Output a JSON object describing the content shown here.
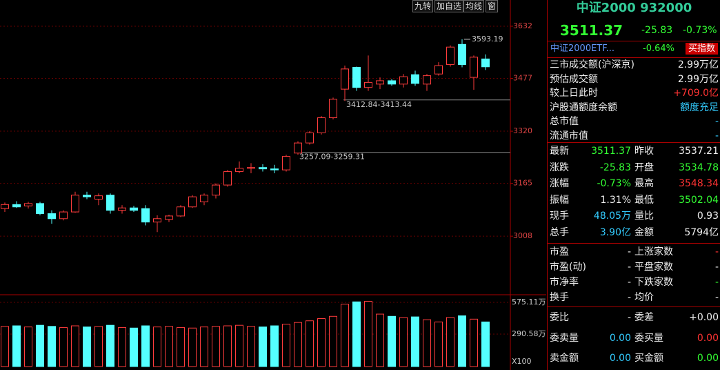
{
  "toolbar": [
    "九转",
    "加自选",
    "均线",
    "窗"
  ],
  "chart_data": {
    "type": "candlestick",
    "open": [
      3090,
      3102,
      3098,
      3105,
      3075,
      3060,
      3080,
      3130,
      3118,
      3130,
      3085,
      3092,
      3090,
      3050,
      3058,
      3068,
      3095,
      3110,
      3130,
      3160,
      3200,
      3210,
      3212,
      3208,
      3205,
      3255,
      3285,
      3315,
      3360,
      3445,
      3510,
      3450,
      3460,
      3470,
      3460,
      3488,
      3460,
      3490,
      3518,
      3578,
      3480,
      3534.78
    ],
    "high": [
      3108,
      3112,
      3110,
      3110,
      3085,
      3085,
      3140,
      3140,
      3135,
      3135,
      3100,
      3098,
      3100,
      3070,
      3072,
      3100,
      3130,
      3135,
      3165,
      3205,
      3230,
      3225,
      3222,
      3220,
      3250,
      3290,
      3320,
      3365,
      3420,
      3515,
      3512,
      3545,
      3480,
      3475,
      3490,
      3500,
      3490,
      3525,
      3575,
      3593.19,
      3545,
      3548.34
    ],
    "low": [
      3080,
      3092,
      3090,
      3070,
      3045,
      3055,
      3078,
      3118,
      3100,
      3075,
      3075,
      3080,
      3040,
      3020,
      3050,
      3065,
      3092,
      3100,
      3120,
      3155,
      3195,
      3195,
      3200,
      3195,
      3200,
      3250,
      3280,
      3310,
      3355,
      3410,
      3440,
      3440,
      3445,
      3455,
      3450,
      3455,
      3440,
      3485,
      3512,
      3510,
      3443,
      3502.04
    ],
    "close": [
      3102,
      3095,
      3105,
      3075,
      3060,
      3080,
      3130,
      3125,
      3128,
      3085,
      3092,
      3085,
      3050,
      3060,
      3068,
      3095,
      3125,
      3130,
      3160,
      3200,
      3210,
      3212,
      3208,
      3205,
      3245,
      3285,
      3315,
      3360,
      3415,
      3505,
      3450,
      3465,
      3470,
      3460,
      3482,
      3462,
      3485,
      3515,
      3570,
      3518,
      3540,
      3511.37
    ],
    "ylim": [
      2838,
      3673
    ],
    "yticks": [
      3008,
      3165,
      3320,
      3477,
      3632
    ],
    "annotations": [
      {
        "value": 3412.84,
        "label": "3412.84-3413.44"
      },
      {
        "value": 3257.09,
        "label": "3257.09-3259.31"
      }
    ]
  },
  "volume": {
    "type": "bar",
    "values": [
      360,
      365,
      355,
      370,
      360,
      350,
      365,
      355,
      360,
      370,
      350,
      345,
      365,
      355,
      360,
      350,
      345,
      355,
      360,
      365,
      370,
      360,
      355,
      365,
      380,
      395,
      410,
      430,
      450,
      560,
      580,
      585,
      470,
      450,
      440,
      445,
      420,
      400,
      440,
      455,
      425,
      400
    ],
    "ylim": [
      0,
      625
    ],
    "yticks": [
      {
        "value": 290.58,
        "label": "290.58万"
      },
      {
        "value": 575.11,
        "label": "575.11万"
      }
    ],
    "unit": "X100"
  },
  "header": {
    "title": "中证2000 932000",
    "price": "3511.37",
    "change": "-25.83",
    "pct": "-0.73%"
  },
  "etf": {
    "name": "中证2000ETF...",
    "pct": "-0.64%",
    "button": "买指数"
  },
  "info": [
    [
      "三市成交额(沪深京)",
      "2.99万亿"
    ],
    [
      "预估成交额",
      "2.99万亿"
    ],
    [
      "较上日此时",
      "+709.0亿"
    ],
    [
      "沪股通额度余额",
      "额度充足"
    ],
    [
      "总市值",
      "-"
    ],
    [
      "流通市值",
      "-"
    ]
  ],
  "quote": [
    [
      "最新",
      "3511.37",
      "昨收",
      "3537.21"
    ],
    [
      "涨跌",
      "-25.83",
      "开盘",
      "3534.78"
    ],
    [
      "涨幅",
      "-0.73%",
      "最高",
      "3548.34"
    ],
    [
      "振幅",
      "1.31%",
      "最低",
      "3502.04"
    ],
    [
      "现手",
      "48.05万",
      "量比",
      "0.93"
    ],
    [
      "总手",
      "3.90亿",
      "金额",
      "5794亿"
    ]
  ],
  "stats": [
    [
      "市盈",
      "-",
      "上涨家数",
      "-"
    ],
    [
      "市盈(动)",
      "-",
      "平盘家数",
      "-"
    ],
    [
      "市净率",
      "-",
      "下跌家数",
      "-"
    ],
    [
      "换手",
      "-",
      "均价",
      "-"
    ]
  ],
  "order": [
    [
      "委比",
      "-",
      "委差",
      "+0.00"
    ],
    [
      "委卖量",
      "0.00",
      "委买量",
      "0.00"
    ],
    [
      "卖金额",
      "0.00",
      "买金额",
      "0.00"
    ]
  ]
}
